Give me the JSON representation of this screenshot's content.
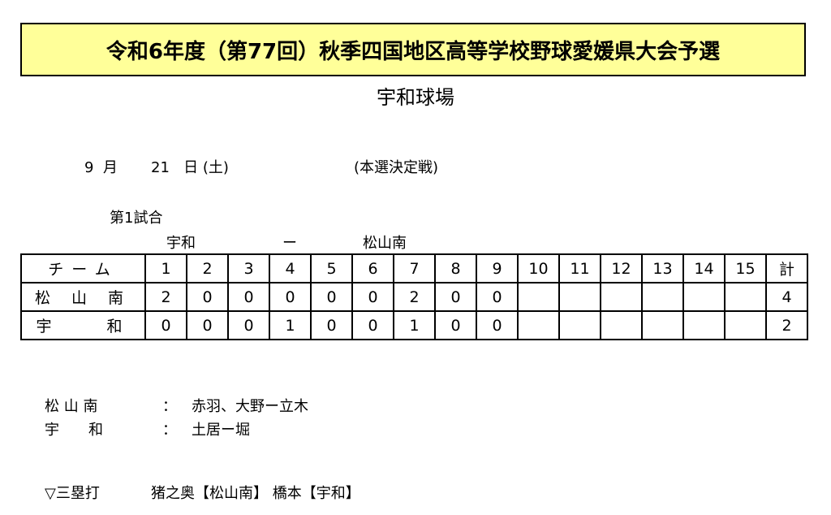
{
  "title": "令和6年度（第77回）秋季四国地区高等学校野球愛媛県大会予選",
  "venue": "宇和球場",
  "date": {
    "month": "9",
    "month_unit": "月",
    "day": "21",
    "day_unit": "日",
    "weekday": "(土)",
    "stage": "(本選決定戦)"
  },
  "game_number": "第1試合",
  "matchup": {
    "home": "宇和",
    "separator": "ー",
    "away": "松山南"
  },
  "scoreboard": {
    "header": [
      "チーム",
      "1",
      "2",
      "3",
      "4",
      "5",
      "6",
      "7",
      "8",
      "9",
      "10",
      "11",
      "12",
      "13",
      "14",
      "15",
      "計"
    ],
    "rows": [
      [
        "松 山 南",
        "2",
        "0",
        "0",
        "0",
        "0",
        "0",
        "2",
        "0",
        "0",
        "",
        "",
        "",
        "",
        "",
        "",
        "4"
      ],
      [
        "宇　　和",
        "0",
        "0",
        "0",
        "1",
        "0",
        "0",
        "1",
        "0",
        "0",
        "",
        "",
        "",
        "",
        "",
        "",
        "2"
      ]
    ]
  },
  "batteries": [
    {
      "team": "松 山 南",
      "colon": "：",
      "players": "赤羽、大野ー立木"
    },
    {
      "team": "宇　　和",
      "colon": "：",
      "players": "土居ー堀"
    }
  ],
  "triples": {
    "label": "▽三塁打",
    "text": "猪之奥【松山南】 橋本【宇和】"
  },
  "colors": {
    "title_background": "#ffff99"
  }
}
